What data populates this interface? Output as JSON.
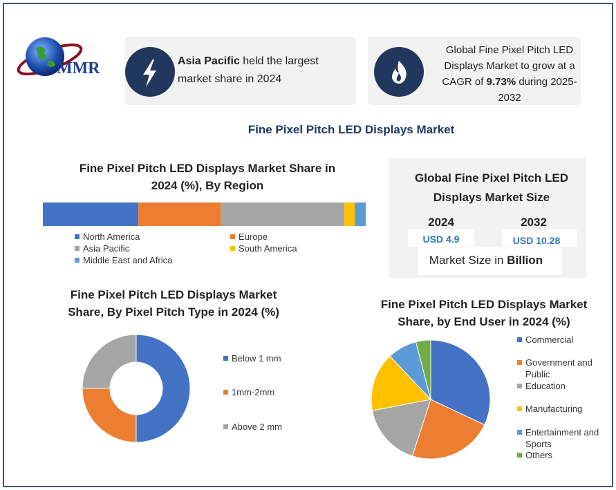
{
  "logo": "MMR",
  "cards": [
    {
      "bold": "Asia Pacific",
      "rest": " held the largest market share in 2024"
    },
    {
      "before": "Global Fine Pixel Pitch LED Displays Market to grow at a CAGR of ",
      "bold": "9.73%",
      "after": " during 2025-2032"
    }
  ],
  "title": "Fine Pixel Pitch LED Displays Market",
  "market_size": {
    "title": "Global Fine Pixel Pitch LED Displays Market Size",
    "years": [
      "2024",
      "2032"
    ],
    "values": [
      "USD 4.9",
      "USD 10.28"
    ],
    "unit_text": "Market Size in ",
    "unit_bold": "Billion"
  },
  "chart_data": [
    {
      "type": "stacked_bar",
      "title": "Fine Pixel Pitch LED Displays Market Share in 2024 (%), By Region",
      "series": [
        {
          "name": "North America",
          "color": "#4472c4",
          "values": [
            29.6
          ]
        },
        {
          "name": "Europe",
          "color": "#ed7d31",
          "values": [
            25.5
          ]
        },
        {
          "name": "Asia Pacific",
          "color": "#a5a5a5",
          "values": [
            38.3
          ]
        },
        {
          "name": "South America",
          "color": "#ffc000",
          "values": [
            3.2
          ]
        },
        {
          "name": "Middle East and Africa",
          "color": "#5b9bd5",
          "values": [
            3.4
          ]
        }
      ]
    },
    {
      "type": "donut",
      "title": "Fine Pixel Pitch LED Displays Market Share, By  Pixel Pitch Type in 2024 (%)",
      "categories": [
        "Below 1 mm",
        "1mm-2mm",
        "Above 2 mm"
      ],
      "values": [
        50,
        25,
        25
      ],
      "colors": [
        "#4472c4",
        "#ed7d31",
        "#a5a5a5"
      ]
    },
    {
      "type": "pie",
      "title": "Fine Pixel Pitch LED Displays Market Share, by  End User in 2024 (%)",
      "categories": [
        "Commercial",
        "Government and Public",
        "Education",
        "Manufacturing",
        "Entertainment and Sports",
        "Others"
      ],
      "values": [
        32,
        23,
        17,
        16,
        8,
        4
      ],
      "colors": [
        "#4472c4",
        "#ed7d31",
        "#a5a5a5",
        "#ffc000",
        "#5b9bd5",
        "#70ad47"
      ]
    }
  ]
}
